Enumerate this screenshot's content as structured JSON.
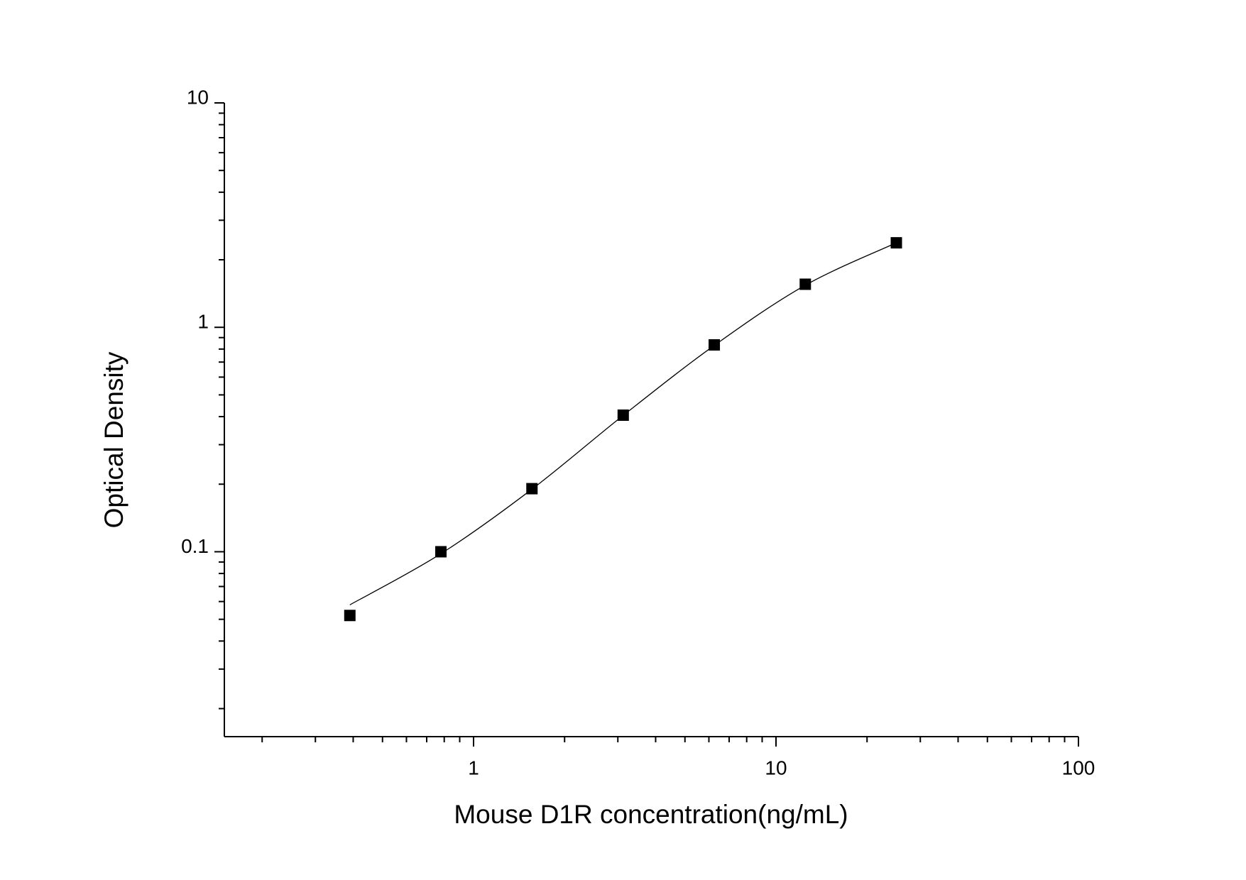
{
  "chart_data": {
    "type": "scatter",
    "x_label": "Mouse D1R concentration(ng/mL)",
    "y_label": "Optical Density",
    "x_scale": "log",
    "y_scale": "log",
    "xlim": [
      0.15,
      100
    ],
    "ylim": [
      0.015,
      10
    ],
    "xticks": [
      1,
      10,
      100
    ],
    "yticks": [
      0.1,
      1,
      10
    ],
    "x_minor_ticks": [
      0.2,
      0.3,
      0.4,
      0.5,
      0.6,
      0.7,
      0.8,
      0.9,
      2,
      3,
      4,
      5,
      6,
      7,
      8,
      9,
      20,
      30,
      40,
      50,
      60,
      70,
      80,
      90
    ],
    "y_minor_ticks": [
      0.02,
      0.03,
      0.04,
      0.05,
      0.06,
      0.07,
      0.08,
      0.09,
      0.2,
      0.3,
      0.4,
      0.5,
      0.6,
      0.7,
      0.8,
      0.9,
      2,
      3,
      4,
      5,
      6,
      7,
      8,
      9
    ],
    "series": [
      {
        "style": "markers",
        "color": "#000000",
        "x": [
          0.39,
          0.78,
          1.56,
          3.125,
          6.25,
          12.5,
          25
        ],
        "values": [
          0.052,
          0.1,
          0.191,
          0.406,
          0.835,
          1.556,
          2.38
        ]
      },
      {
        "style": "line",
        "color": "#000000",
        "x": [
          0.39,
          0.78,
          1.56,
          3.125,
          6.25,
          12.5,
          25
        ],
        "values": [
          0.058,
          0.098,
          0.19,
          0.405,
          0.83,
          1.54,
          2.38
        ]
      }
    ]
  }
}
